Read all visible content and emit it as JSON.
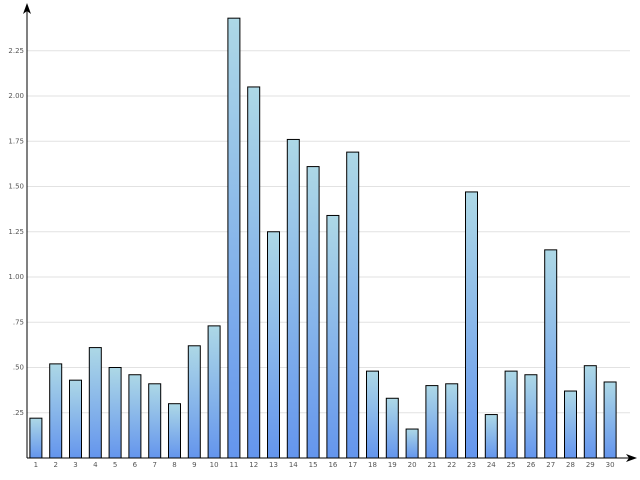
{
  "chart_data": {
    "type": "bar",
    "categories": [
      "1",
      "2",
      "3",
      "4",
      "5",
      "6",
      "7",
      "8",
      "9",
      "10",
      "11",
      "12",
      "13",
      "14",
      "15",
      "16",
      "17",
      "18",
      "19",
      "20",
      "21",
      "22",
      "23",
      "24",
      "25",
      "26",
      "27",
      "28",
      "29",
      "30"
    ],
    "values": [
      0.22,
      0.52,
      0.43,
      0.61,
      0.5,
      0.46,
      0.41,
      0.3,
      0.62,
      0.73,
      2.43,
      2.05,
      1.25,
      1.76,
      1.61,
      1.34,
      1.69,
      0.48,
      0.33,
      0.16,
      0.4,
      0.41,
      1.47,
      0.24,
      0.48,
      0.46,
      1.15,
      0.37,
      0.51,
      0.42
    ],
    "color": [
      "#add8e6",
      "#6495ed"
    ],
    "ylim": [
      0,
      2.5
    ],
    "yticks": [
      {
        "value": 0.25,
        "label": ".25"
      },
      {
        "value": 0.5,
        "label": ".50"
      },
      {
        "value": 0.75,
        "label": ".75"
      },
      {
        "value": 1,
        "label": "1.00"
      },
      1.25,
      {
        "value": 1.5,
        "label": "1.50"
      },
      1.75,
      {
        "value": 2,
        "label": "2.00"
      },
      2.25
    ],
    "grid": true
  }
}
